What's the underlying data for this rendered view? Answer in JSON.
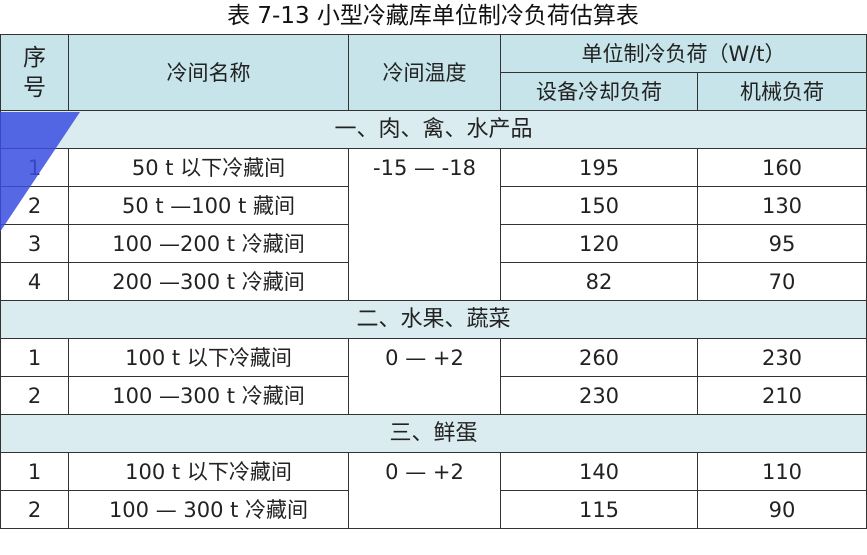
{
  "title": "表 7-13  小型冷藏库单位制冷负荷估算表",
  "headers": {
    "no": "序\n号",
    "name": "冷间名称",
    "temp": "冷间温度",
    "load": "单位制冷负荷（W/t）",
    "equip": "设备冷却负荷",
    "mech": "机械负荷"
  },
  "sections": [
    {
      "title": "一、肉、禽、水产品",
      "temp": "-15 — -18",
      "rows": [
        {
          "no": "1",
          "name": "50 t 以下冷藏间",
          "equip": "195",
          "mech": "160"
        },
        {
          "no": "2",
          "name": "50 t —100 t 藏间",
          "equip": "150",
          "mech": "130"
        },
        {
          "no": "3",
          "name": "100 —200 t 冷藏间",
          "equip": "120",
          "mech": "95"
        },
        {
          "no": "4",
          "name": "200 —300 t 冷藏间",
          "equip": "82",
          "mech": "70"
        }
      ]
    },
    {
      "title": "二、水果、蔬菜",
      "temp": "0 — +2",
      "rows": [
        {
          "no": "1",
          "name": "100 t 以下冷藏间",
          "equip": "260",
          "mech": "230"
        },
        {
          "no": "2",
          "name": "100 —300 t 冷藏间",
          "equip": "230",
          "mech": "210"
        }
      ]
    },
    {
      "title": "三、鲜蛋",
      "temp": "0 — +2",
      "rows": [
        {
          "no": "1",
          "name": "100 t  以下冷藏间",
          "equip": "140",
          "mech": "110"
        },
        {
          "no": "2",
          "name": "100 — 300 t 冷藏间",
          "equip": "115",
          "mech": "90"
        }
      ]
    }
  ]
}
